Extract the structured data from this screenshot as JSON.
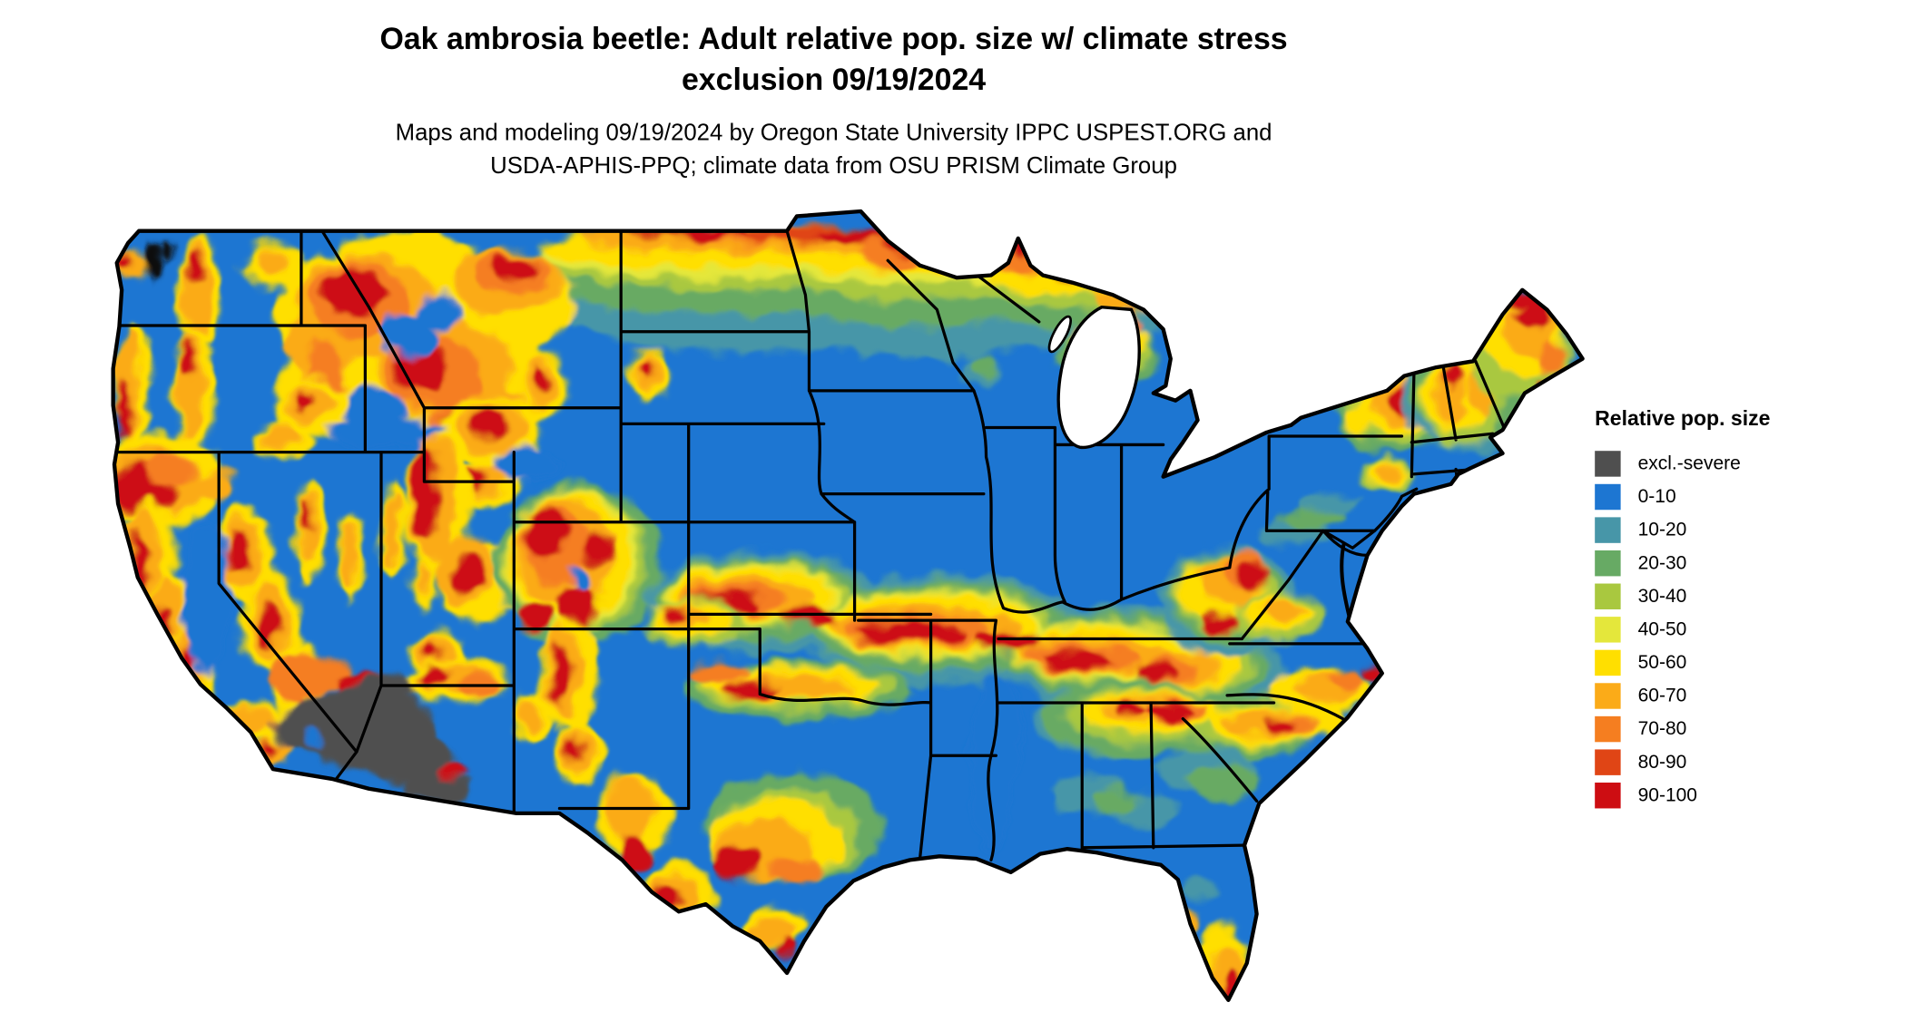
{
  "header": {
    "title_line1": "Oak ambrosia beetle: Adult relative pop. size w/ climate stress",
    "title_line2": "exclusion 09/19/2024",
    "subtitle_line1": "Maps and modeling 09/19/2024 by Oregon State University IPPC USPEST.ORG and",
    "subtitle_line2": "USDA-APHIS-PPQ; climate data from OSU PRISM Climate Group"
  },
  "legend": {
    "title": "Relative pop. size",
    "items": [
      {
        "label": "excl.-severe",
        "color": "#4f4f4f"
      },
      {
        "label": "0-10",
        "color": "#1d76d2"
      },
      {
        "label": "10-20",
        "color": "#4796a8"
      },
      {
        "label": "20-30",
        "color": "#67aa64"
      },
      {
        "label": "30-40",
        "color": "#a9c83f"
      },
      {
        "label": "40-50",
        "color": "#e4e73b"
      },
      {
        "label": "50-60",
        "color": "#ffdf00"
      },
      {
        "label": "60-70",
        "color": "#fbab18"
      },
      {
        "label": "70-80",
        "color": "#f57e20"
      },
      {
        "label": "80-90",
        "color": "#e04515"
      },
      {
        "label": "90-100",
        "color": "#cd0d12"
      }
    ]
  }
}
